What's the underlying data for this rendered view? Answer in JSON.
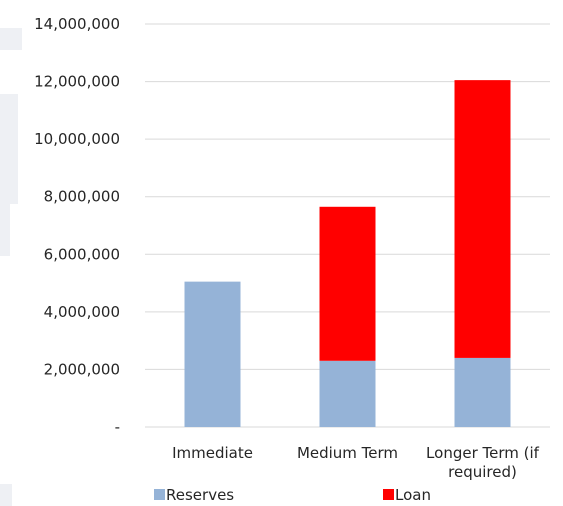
{
  "chart_data": {
    "type": "bar",
    "stacked": true,
    "categories": [
      "Immediate",
      "Medium Term",
      "Longer Term (if required)"
    ],
    "category_lines": [
      [
        "Immediate"
      ],
      [
        "Medium Term"
      ],
      [
        "Longer Term (if",
        "required)"
      ]
    ],
    "series": [
      {
        "name": "Reserves",
        "color": "#95b3d7",
        "values": [
          5050000,
          2300000,
          2400000
        ]
      },
      {
        "name": "Loan",
        "color": "#ff0000",
        "values": [
          0,
          5350000,
          9650000
        ]
      }
    ],
    "ylim": [
      0,
      14000000
    ],
    "yticks": [
      0,
      2000000,
      4000000,
      6000000,
      8000000,
      10000000,
      12000000,
      14000000
    ],
    "ytick_labels": [
      "-",
      "2,000,000",
      "4,000,000",
      "6,000,000",
      "8,000,000",
      "10,000,000",
      "12,000,000",
      "14,000,000"
    ],
    "grid": true,
    "legend": "bottom",
    "title": "",
    "xlabel": "",
    "ylabel": ""
  }
}
